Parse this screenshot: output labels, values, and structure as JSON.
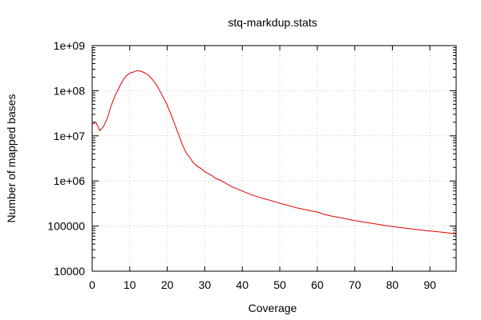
{
  "chart_data": {
    "type": "line",
    "title": "stq-markdup.stats",
    "xlabel": "Coverage",
    "ylabel": "Number of mapped bases",
    "xlim": [
      0,
      97
    ],
    "ylim": [
      10000,
      1000000000
    ],
    "yscale": "log",
    "grid": true,
    "xticks": [
      0,
      10,
      20,
      30,
      40,
      50,
      60,
      70,
      80,
      90
    ],
    "xtick_labels": [
      "0",
      "10",
      "20",
      "30",
      "40",
      "50",
      "60",
      "70",
      "80",
      "90"
    ],
    "yticks": [
      10000,
      100000,
      1000000,
      10000000,
      100000000,
      1000000000
    ],
    "ytick_labels": [
      "10000",
      "100000",
      "1e+06",
      "1e+07",
      "1e+08",
      "1e+09"
    ],
    "colors": {
      "series": "#e00000",
      "grid": "#c8c8c8",
      "frame": "#000000"
    },
    "series": [
      {
        "x": [
          0,
          1,
          2,
          3,
          4,
          5,
          6,
          7,
          8,
          9,
          10,
          11,
          12,
          13,
          14,
          15,
          16,
          17,
          18,
          19,
          20,
          21,
          22,
          23,
          24,
          25,
          26,
          27,
          28,
          29,
          30,
          31,
          32,
          33,
          34,
          35,
          36,
          37,
          38,
          39,
          40,
          42,
          44,
          46,
          48,
          50,
          52,
          54,
          56,
          58,
          60,
          62,
          64,
          66,
          68,
          70,
          72,
          74,
          76,
          78,
          80,
          82,
          84,
          86,
          88,
          90,
          92,
          94,
          96,
          97
        ],
        "values": [
          18000000,
          20000000,
          13000000,
          16000000,
          24000000,
          45000000,
          75000000,
          110000000,
          160000000,
          210000000,
          245000000,
          260000000,
          280000000,
          270000000,
          250000000,
          220000000,
          180000000,
          140000000,
          100000000,
          70000000,
          48000000,
          30000000,
          18000000,
          11000000,
          6500000,
          4300000,
          3300000,
          2500000,
          2100000,
          1900000,
          1600000,
          1450000,
          1300000,
          1120000,
          1050000,
          950000,
          850000,
          760000,
          700000,
          650000,
          600000,
          510000,
          450000,
          400000,
          360000,
          320000,
          290000,
          260000,
          240000,
          220000,
          205000,
          180000,
          165000,
          155000,
          142000,
          132000,
          124000,
          117000,
          110000,
          103000,
          98000,
          93000,
          89000,
          85000,
          81000,
          78000,
          75000,
          72000,
          69000,
          67000
        ]
      }
    ]
  }
}
